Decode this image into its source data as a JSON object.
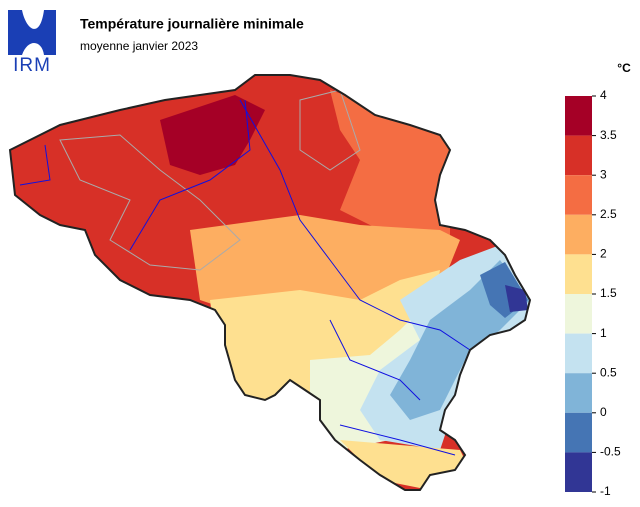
{
  "header": {
    "logo": "IRM",
    "title": "Température journalière minimale",
    "subtitle": "moyenne janvier 2023"
  },
  "legend": {
    "unit": "°C",
    "ticks": [
      4,
      3.5,
      3,
      2.5,
      2,
      1.5,
      1,
      0.5,
      0,
      -0.5,
      -1
    ],
    "colors": [
      "#a50026",
      "#d73027",
      "#f46d43",
      "#fdae61",
      "#fee090",
      "#eef6dc",
      "#c4e2f0",
      "#80b4d8",
      "#4575b4",
      "#313695"
    ]
  }
}
